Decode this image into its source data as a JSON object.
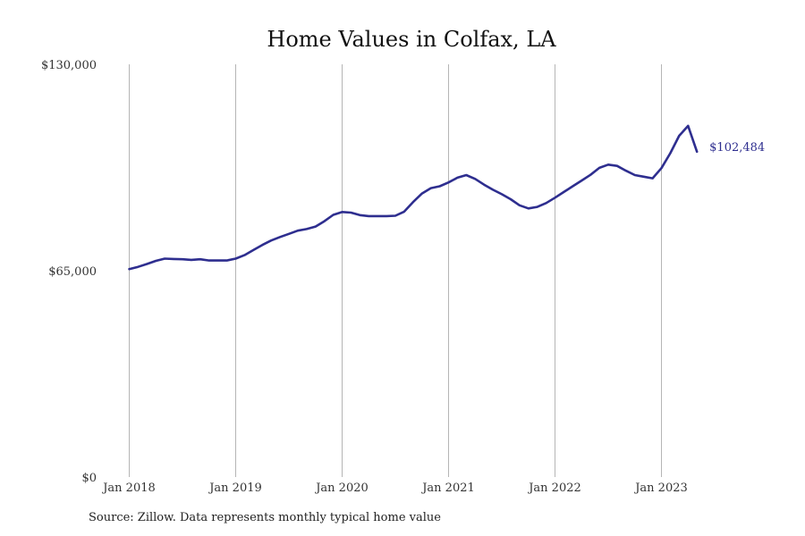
{
  "chart_data": {
    "type": "line",
    "title": "Home Values in Colfax, LA",
    "xlabel": "",
    "ylabel": "",
    "ylim": [
      0,
      130000
    ],
    "xlim": [
      "2018-01",
      "2023-12"
    ],
    "y_ticks": [
      {
        "value": 0,
        "label": "$0"
      },
      {
        "value": 65000,
        "label": "$65,000"
      },
      {
        "value": 130000,
        "label": "$130,000"
      }
    ],
    "x_ticks": [
      {
        "date": "2018-01",
        "label": "Jan 2018"
      },
      {
        "date": "2019-01",
        "label": "Jan 2019"
      },
      {
        "date": "2020-01",
        "label": "Jan 2020"
      },
      {
        "date": "2021-01",
        "label": "Jan 2021"
      },
      {
        "date": "2022-01",
        "label": "Jan 2022"
      },
      {
        "date": "2023-01",
        "label": "Jan 2023"
      }
    ],
    "grid": {
      "vertical": true,
      "horizontal": false
    },
    "line_color": "#2e2e8f",
    "grid_color": "#b5b5b5",
    "end_label": "$102,484",
    "series": [
      {
        "x": [
          "2018-01",
          "2018-02",
          "2018-03",
          "2018-04",
          "2018-05",
          "2018-06",
          "2018-07",
          "2018-08",
          "2018-09",
          "2018-10",
          "2018-11",
          "2018-12",
          "2019-01",
          "2019-02",
          "2019-03",
          "2019-04",
          "2019-05",
          "2019-06",
          "2019-07",
          "2019-08",
          "2019-09",
          "2019-10",
          "2019-11",
          "2019-12",
          "2020-01",
          "2020-02",
          "2020-03",
          "2020-04",
          "2020-05",
          "2020-06",
          "2020-07",
          "2020-08",
          "2020-09",
          "2020-10",
          "2020-11",
          "2020-12",
          "2021-01",
          "2021-02",
          "2021-03",
          "2021-04",
          "2021-05",
          "2021-06",
          "2021-07",
          "2021-08",
          "2021-09",
          "2021-10",
          "2021-11",
          "2021-12",
          "2022-01",
          "2022-02",
          "2022-03",
          "2022-04",
          "2022-05",
          "2022-06",
          "2022-07",
          "2022-08",
          "2022-09",
          "2022-10",
          "2022-11",
          "2022-12",
          "2023-01",
          "2023-02",
          "2023-03",
          "2023-04",
          "2023-05"
        ],
        "values": [
          65500,
          66200,
          67100,
          68100,
          68800,
          68700,
          68600,
          68400,
          68600,
          68200,
          68200,
          68200,
          68800,
          69900,
          71500,
          73100,
          74500,
          75600,
          76600,
          77600,
          78100,
          78900,
          80600,
          82600,
          83500,
          83300,
          82500,
          82200,
          82200,
          82200,
          82300,
          83600,
          86600,
          89300,
          91000,
          91600,
          92800,
          94300,
          95100,
          93900,
          92100,
          90500,
          89100,
          87500,
          85600,
          84600,
          85100,
          86300,
          88000,
          89800,
          91600,
          93400,
          95200,
          97400,
          98400,
          98000,
          96500,
          95100,
          94600,
          94100,
          97300,
          102000,
          107500,
          110600,
          102484
        ]
      }
    ]
  },
  "source_note": "Source: Zillow. Data represents monthly typical home value"
}
